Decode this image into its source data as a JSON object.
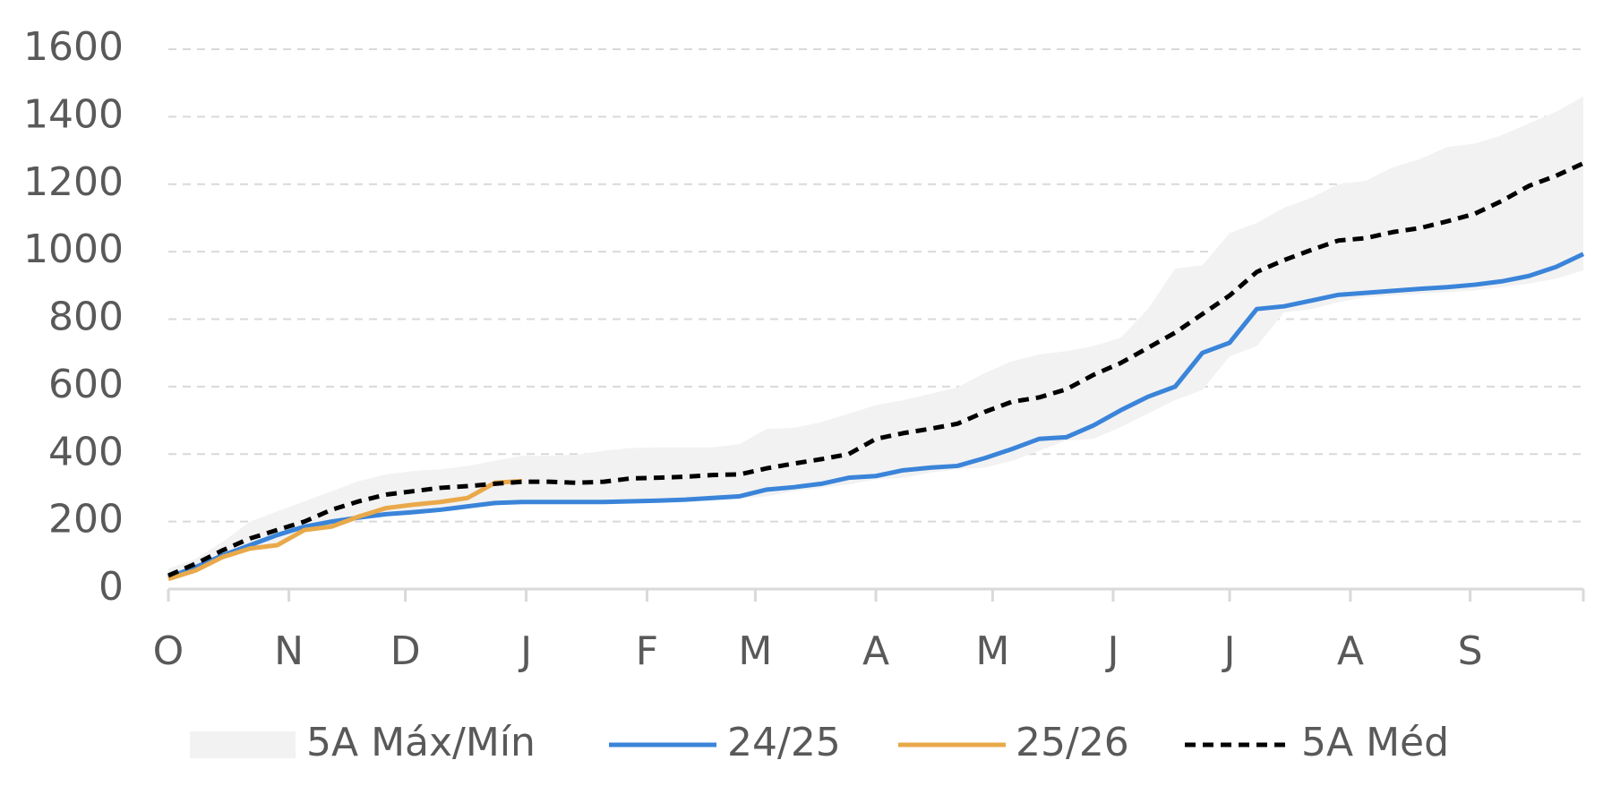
{
  "chart_data": {
    "type": "line",
    "x": [
      0,
      1,
      2,
      3,
      4,
      5,
      6,
      7,
      8,
      9,
      10,
      11,
      12,
      13,
      14,
      15,
      16,
      17,
      18,
      19,
      20,
      21,
      22,
      23,
      24,
      25,
      26,
      27,
      28,
      29,
      30,
      31,
      32,
      33,
      34,
      35,
      36,
      37,
      38,
      39,
      40,
      41,
      42,
      43,
      44,
      45,
      46,
      47,
      48,
      49,
      50,
      51,
      52
    ],
    "xlim": [
      0,
      52
    ],
    "xticks": [
      {
        "value": 0,
        "label": "O"
      },
      {
        "value": 4.43,
        "label": "N"
      },
      {
        "value": 8.71,
        "label": "D"
      },
      {
        "value": 13.15,
        "label": "J"
      },
      {
        "value": 17.59,
        "label": "F"
      },
      {
        "value": 21.57,
        "label": "M"
      },
      {
        "value": 26.0,
        "label": "A"
      },
      {
        "value": 30.29,
        "label": "M"
      },
      {
        "value": 34.72,
        "label": "J"
      },
      {
        "value": 39.0,
        "label": "J"
      },
      {
        "value": 43.44,
        "label": "A"
      },
      {
        "value": 47.84,
        "label": "S"
      }
    ],
    "ylim": [
      0,
      1600
    ],
    "yticks": [
      0,
      200,
      400,
      600,
      800,
      1000,
      1200,
      1400,
      1600
    ],
    "grid": true,
    "legend": "bottom",
    "band": {
      "name": "5A Máx/Mín",
      "color": "#f2f2f2",
      "upper": [
        60,
        90,
        140,
        200,
        230,
        260,
        290,
        320,
        340,
        350,
        355,
        365,
        380,
        395,
        395,
        398,
        410,
        418,
        420,
        420,
        420,
        430,
        475,
        478,
        495,
        520,
        545,
        560,
        578,
        598,
        640,
        675,
        695,
        705,
        720,
        745,
        830,
        950,
        960,
        1055,
        1085,
        1130,
        1160,
        1200,
        1210,
        1250,
        1275,
        1310,
        1320,
        1345,
        1380,
        1415,
        1460
      ],
      "lower": [
        25,
        50,
        90,
        115,
        125,
        170,
        180,
        205,
        220,
        225,
        232,
        240,
        250,
        255,
        255,
        255,
        255,
        255,
        258,
        260,
        262,
        268,
        275,
        290,
        300,
        310,
        325,
        330,
        345,
        355,
        360,
        380,
        410,
        440,
        445,
        480,
        520,
        560,
        590,
        690,
        720,
        820,
        830,
        850,
        865,
        870,
        875,
        880,
        885,
        895,
        905,
        920,
        945
      ]
    },
    "series": [
      {
        "name": "24/25",
        "color": "#3a84d9",
        "values": [
          35,
          65,
          100,
          130,
          160,
          185,
          200,
          212,
          222,
          228,
          235,
          245,
          255,
          258,
          258,
          258,
          258,
          260,
          262,
          265,
          270,
          275,
          295,
          302,
          312,
          330,
          335,
          352,
          360,
          365,
          388,
          415,
          445,
          450,
          485,
          530,
          570,
          600,
          700,
          730,
          830,
          838,
          855,
          872,
          878,
          884,
          890,
          895,
          902,
          912,
          928,
          955,
          993
        ]
      },
      {
        "name": "25/26",
        "color": "#e9a94a",
        "values": [
          30,
          55,
          95,
          120,
          130,
          175,
          185,
          215,
          240,
          250,
          258,
          270,
          315,
          320,
          null,
          null,
          null,
          null,
          null,
          null,
          null,
          null,
          null,
          null,
          null,
          null,
          null,
          null,
          null,
          null,
          null,
          null,
          null,
          null,
          null,
          null,
          null,
          null,
          null,
          null,
          null,
          null,
          null,
          null,
          null,
          null,
          null,
          null,
          null,
          null,
          null,
          null,
          null
        ]
      },
      {
        "name": "5A Méd",
        "color": "#000000",
        "dashed": true,
        "values": [
          40,
          75,
          115,
          150,
          175,
          200,
          235,
          260,
          280,
          290,
          300,
          305,
          312,
          318,
          318,
          315,
          318,
          328,
          330,
          333,
          338,
          340,
          358,
          372,
          385,
          400,
          445,
          462,
          475,
          490,
          525,
          555,
          568,
          592,
          635,
          670,
          715,
          760,
          815,
          870,
          940,
          975,
          1005,
          1033,
          1040,
          1058,
          1070,
          1090,
          1112,
          1150,
          1195,
          1225,
          1262
        ]
      }
    ]
  }
}
